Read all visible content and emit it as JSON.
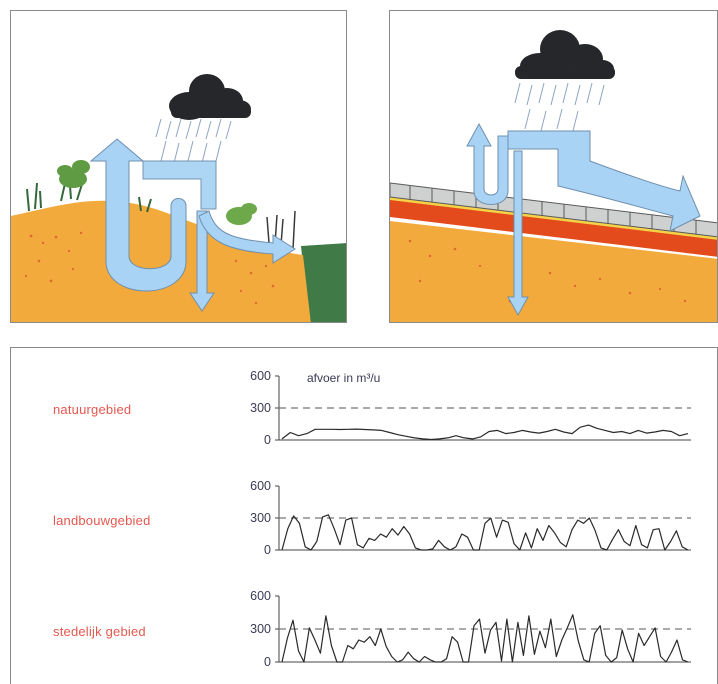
{
  "rows": [
    {
      "label": "natuurgebied"
    },
    {
      "label": "landbouwgebied"
    },
    {
      "label": "stedelijk gebied"
    }
  ],
  "unit_label": "afvoer in  m³/u",
  "y_ticks": [
    "600",
    "300",
    "0"
  ],
  "colors": {
    "soil": "#f2aa3c",
    "arrow": "#a9d3f4",
    "cloud": "#26272b",
    "row_label": "#e4584f",
    "grass_bank": "#3f7a47"
  },
  "chart_data": [
    {
      "type": "line",
      "title": "natuurgebied",
      "ylabel": "afvoer in  m³/u",
      "yticks": [
        0,
        300,
        600
      ],
      "ylim": [
        0,
        600
      ],
      "reference_line": 300,
      "series": [
        {
          "values": [
            10,
            70,
            40,
            60,
            100,
            100,
            100,
            98,
            100,
            102,
            98,
            95,
            90,
            70,
            50,
            35,
            20,
            10,
            5,
            10,
            20,
            40,
            20,
            10,
            30,
            80,
            90,
            60,
            70,
            90,
            75,
            65,
            80,
            100,
            75,
            60,
            120,
            140,
            110,
            90,
            70,
            80,
            60,
            90,
            65,
            75,
            90,
            80,
            40,
            60
          ]
        }
      ]
    },
    {
      "type": "line",
      "title": "landbouwgebied",
      "ylabel": "afvoer in  m³/u",
      "yticks": [
        0,
        300,
        600
      ],
      "ylim": [
        0,
        600
      ],
      "reference_line": 300,
      "series": [
        {
          "values": [
            0,
            200,
            320,
            250,
            30,
            0,
            80,
            310,
            330,
            200,
            50,
            280,
            300,
            50,
            20,
            110,
            90,
            150,
            120,
            200,
            140,
            220,
            150,
            20,
            0,
            0,
            10,
            90,
            30,
            0,
            30,
            150,
            120,
            0,
            0,
            250,
            300,
            120,
            280,
            260,
            60,
            0,
            160,
            20,
            200,
            90,
            230,
            160,
            70,
            30,
            190,
            280,
            250,
            300,
            180,
            20,
            0,
            100,
            190,
            80,
            40,
            230,
            50,
            20,
            190,
            200,
            0,
            80,
            180,
            30,
            0
          ]
        }
      ]
    },
    {
      "type": "line",
      "title": "stedelijk gebied",
      "ylabel": "afvoer in  m³/u",
      "yticks": [
        0,
        300,
        600
      ],
      "ylim": [
        0,
        600
      ],
      "reference_line": 300,
      "series": [
        {
          "values": [
            0,
            220,
            380,
            100,
            0,
            310,
            200,
            80,
            420,
            150,
            0,
            0,
            150,
            120,
            200,
            180,
            230,
            150,
            300,
            140,
            50,
            0,
            20,
            90,
            30,
            0,
            50,
            20,
            0,
            0,
            30,
            230,
            180,
            0,
            0,
            330,
            390,
            80,
            290,
            360,
            10,
            390,
            0,
            360,
            60,
            420,
            70,
            280,
            130,
            390,
            50,
            200,
            310,
            430,
            190,
            20,
            0,
            260,
            330,
            60,
            0,
            40,
            290,
            120,
            0,
            260,
            150,
            230,
            310,
            50,
            0,
            90,
            200,
            20,
            0
          ]
        }
      ]
    }
  ]
}
